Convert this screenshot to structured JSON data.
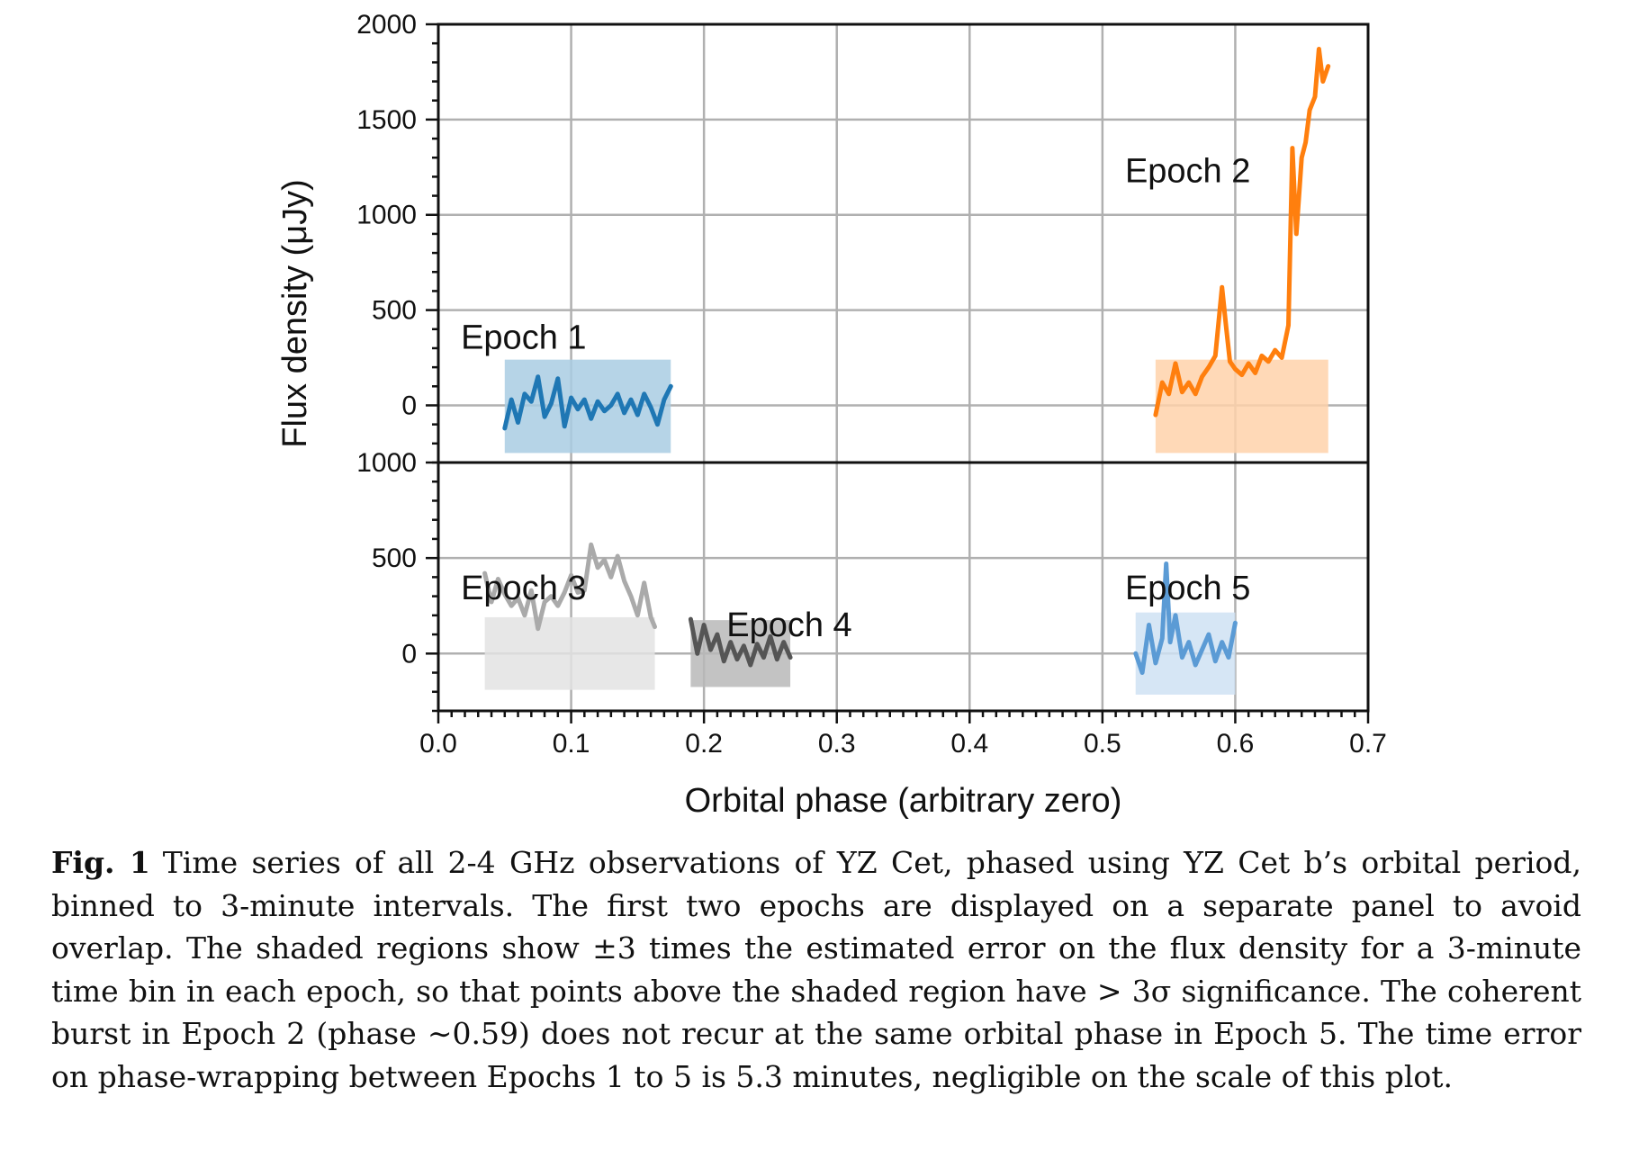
{
  "chart_data": {
    "type": "line",
    "xlabel": "Orbital phase (arbitrary zero)",
    "ylabel": "Flux density (μJy)",
    "xlim": [
      0.0,
      0.7
    ],
    "x_ticks": [
      "0.0",
      "0.1",
      "0.2",
      "0.3",
      "0.4",
      "0.5",
      "0.6",
      "0.7"
    ],
    "grid": true,
    "panels": [
      {
        "name": "top",
        "ylim": [
          -300,
          2000
        ],
        "y_ticks": [
          "0",
          "500",
          "1000",
          "1500",
          "2000"
        ],
        "series": [
          {
            "name": "Epoch 1",
            "color": "#1f77b4",
            "band": [
              -250,
              240
            ],
            "band_color": "#a9cce3",
            "x": [
              0.05,
              0.055,
              0.06,
              0.065,
              0.07,
              0.075,
              0.08,
              0.085,
              0.09,
              0.095,
              0.1,
              0.105,
              0.11,
              0.115,
              0.12,
              0.125,
              0.13,
              0.135,
              0.14,
              0.145,
              0.15,
              0.155,
              0.16,
              0.165,
              0.17,
              0.175
            ],
            "y": [
              -120,
              30,
              -90,
              60,
              20,
              150,
              -60,
              10,
              140,
              -110,
              40,
              -20,
              30,
              -70,
              20,
              -30,
              0,
              60,
              -40,
              30,
              -50,
              60,
              -10,
              -100,
              30,
              100
            ]
          },
          {
            "name": "Epoch 2",
            "color": "#ff7f0e",
            "band": [
              -250,
              240
            ],
            "band_color": "#ffd2aa",
            "x": [
              0.54,
              0.545,
              0.55,
              0.555,
              0.56,
              0.565,
              0.57,
              0.575,
              0.58,
              0.585,
              0.59,
              0.593,
              0.596,
              0.6,
              0.605,
              0.61,
              0.615,
              0.62,
              0.625,
              0.63,
              0.635,
              0.64,
              0.643,
              0.646,
              0.65,
              0.653,
              0.656,
              0.66,
              0.663,
              0.666,
              0.67
            ],
            "y": [
              -50,
              120,
              60,
              220,
              70,
              120,
              60,
              150,
              200,
              260,
              620,
              420,
              230,
              190,
              160,
              220,
              170,
              260,
              230,
              290,
              250,
              420,
              1350,
              900,
              1300,
              1380,
              1550,
              1620,
              1870,
              1700,
              1780
            ]
          }
        ]
      },
      {
        "name": "bottom",
        "ylim": [
          -300,
          1000
        ],
        "y_ticks": [
          "0",
          "500",
          "1000"
        ],
        "series": [
          {
            "name": "Epoch 3",
            "color": "#aaaaaa",
            "band": [
              -190,
              190
            ],
            "band_color": "#e3e3e3",
            "x": [
              0.035,
              0.04,
              0.045,
              0.05,
              0.055,
              0.06,
              0.065,
              0.07,
              0.075,
              0.08,
              0.085,
              0.09,
              0.095,
              0.1,
              0.105,
              0.11,
              0.115,
              0.12,
              0.125,
              0.13,
              0.135,
              0.14,
              0.145,
              0.15,
              0.155,
              0.16,
              0.163
            ],
            "y": [
              420,
              270,
              390,
              310,
              250,
              290,
              200,
              330,
              130,
              270,
              300,
              250,
              320,
              410,
              320,
              330,
              570,
              450,
              490,
              400,
              510,
              380,
              300,
              200,
              370,
              190,
              140
            ]
          },
          {
            "name": "Epoch 4",
            "color": "#555555",
            "band": [
              -175,
              175
            ],
            "band_color": "#b9b9b9",
            "x": [
              0.19,
              0.195,
              0.2,
              0.205,
              0.21,
              0.215,
              0.22,
              0.225,
              0.23,
              0.235,
              0.24,
              0.245,
              0.25,
              0.255,
              0.26,
              0.265
            ],
            "y": [
              180,
              0,
              150,
              20,
              100,
              -40,
              60,
              -30,
              40,
              -60,
              50,
              -20,
              90,
              -30,
              60,
              -20
            ]
          },
          {
            "name": "Epoch 5",
            "color": "#5b9bd5",
            "band": [
              -215,
              215
            ],
            "band_color": "#cfe2f3",
            "x": [
              0.525,
              0.53,
              0.535,
              0.54,
              0.545,
              0.548,
              0.551,
              0.555,
              0.56,
              0.565,
              0.57,
              0.575,
              0.58,
              0.585,
              0.59,
              0.595,
              0.6
            ],
            "y": [
              0,
              -100,
              150,
              -50,
              80,
              470,
              60,
              200,
              -20,
              60,
              -60,
              20,
              100,
              -40,
              60,
              -20,
              160
            ]
          }
        ]
      }
    ]
  },
  "caption": {
    "label": "Fig. 1",
    "text": "Time series of all 2-4 GHz observations of YZ Cet, phased using YZ Cet b’s orbital period, binned to 3-minute intervals. The first two epochs are displayed on a separate panel to avoid overlap. The shaded regions show ±3 times the estimated error on the flux density for a 3-minute time bin in each epoch, so that points above the shaded region have > 3σ significance. The coherent burst in Epoch 2 (phase ∼0.59) does not recur at the same orbital phase in Epoch 5. The time error on phase-wrapping between Epochs 1 to 5 is 5.3 minutes, negligible on the scale of this plot."
  }
}
